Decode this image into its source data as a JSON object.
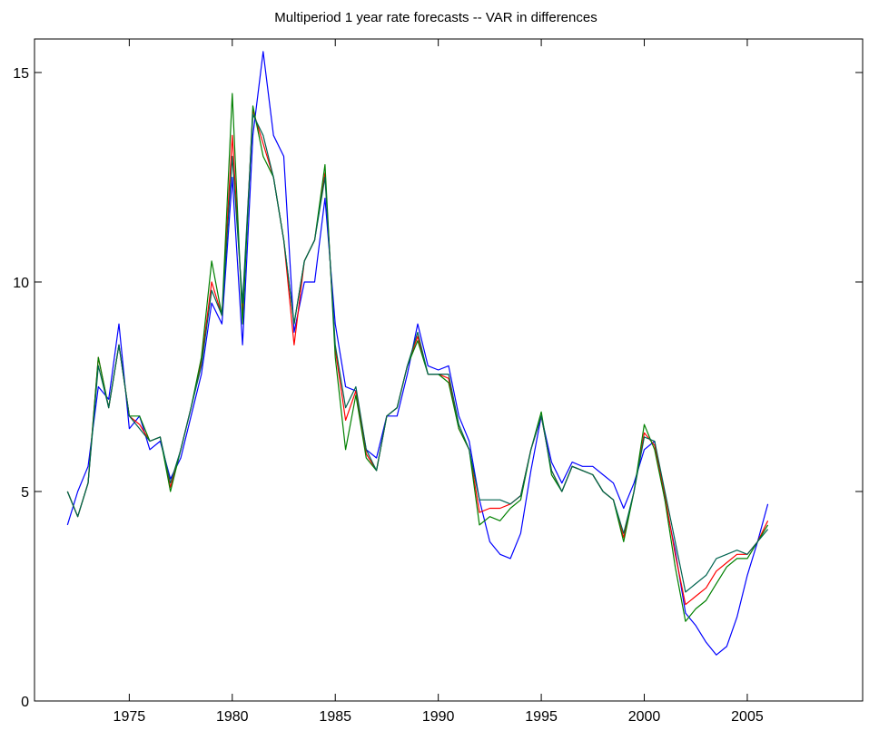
{
  "chart_data": {
    "type": "line",
    "title": "Multiperiod 1 year rate forecasts -- VAR in differences",
    "x": [
      1972.0,
      1972.5,
      1973.0,
      1973.5,
      1974.0,
      1974.5,
      1975.0,
      1975.5,
      1976.0,
      1976.5,
      1977.0,
      1977.5,
      1978.0,
      1978.5,
      1979.0,
      1979.5,
      1980.0,
      1980.5,
      1981.0,
      1981.5,
      1982.0,
      1982.5,
      1983.0,
      1983.5,
      1984.0,
      1984.5,
      1985.0,
      1985.5,
      1986.0,
      1986.5,
      1987.0,
      1987.5,
      1988.0,
      1988.5,
      1989.0,
      1989.5,
      1990.0,
      1990.5,
      1991.0,
      1991.5,
      1992.0,
      1992.5,
      1993.0,
      1993.5,
      1994.0,
      1994.5,
      1995.0,
      1995.5,
      1996.0,
      1996.5,
      1997.0,
      1997.5,
      1998.0,
      1998.5,
      1999.0,
      1999.5,
      2000.0,
      2000.5,
      2001.0,
      2001.5,
      2002.0,
      2002.5,
      2003.0,
      2003.5,
      2004.0,
      2004.5,
      2005.0,
      2005.5,
      2006.0
    ],
    "series": [
      {
        "color": "#0000ff",
        "values": [
          4.2,
          5.0,
          5.6,
          7.5,
          7.2,
          9.0,
          6.5,
          6.8,
          6.0,
          6.2,
          5.3,
          5.8,
          6.8,
          7.8,
          9.5,
          9.0,
          12.5,
          8.5,
          13.5,
          15.5,
          13.5,
          13.0,
          8.8,
          10.0,
          10.0,
          12.0,
          9.0,
          7.5,
          7.4,
          6.0,
          5.8,
          6.8,
          6.8,
          7.8,
          9.0,
          8.0,
          7.9,
          8.0,
          6.8,
          6.2,
          4.8,
          3.8,
          3.5,
          3.4,
          4.0,
          5.5,
          6.8,
          5.7,
          5.2,
          5.7,
          5.6,
          5.6,
          5.4,
          5.2,
          4.6,
          5.2,
          6.0,
          6.2,
          4.8,
          3.6,
          2.1,
          1.8,
          1.4,
          1.1,
          1.3,
          2.0,
          3.0,
          3.8,
          4.7
        ]
      },
      {
        "color": "#ff0000",
        "values": [
          5.0,
          4.4,
          5.2,
          8.2,
          7.0,
          8.5,
          6.8,
          6.6,
          6.2,
          6.3,
          5.1,
          6.0,
          7.0,
          8.1,
          10.0,
          9.2,
          13.5,
          9.3,
          14.1,
          13.3,
          12.5,
          11.0,
          8.5,
          10.5,
          11.0,
          12.6,
          8.4,
          6.7,
          7.4,
          5.9,
          5.5,
          6.8,
          7.0,
          8.0,
          8.7,
          7.8,
          7.8,
          7.7,
          6.5,
          6.0,
          4.5,
          4.6,
          4.6,
          4.7,
          4.9,
          6.0,
          6.8,
          5.5,
          5.0,
          5.6,
          5.5,
          5.4,
          5.0,
          4.8,
          3.9,
          5.0,
          6.4,
          6.1,
          4.9,
          3.5,
          2.3,
          2.5,
          2.7,
          3.1,
          3.3,
          3.5,
          3.5,
          3.8,
          4.3
        ]
      },
      {
        "color": "#008000",
        "values": [
          5.0,
          4.4,
          5.2,
          8.2,
          7.0,
          8.5,
          6.8,
          6.8,
          6.2,
          6.3,
          5.0,
          6.0,
          7.0,
          8.2,
          10.5,
          9.2,
          14.5,
          9.0,
          14.2,
          13.0,
          12.5,
          11.0,
          9.0,
          10.5,
          11.0,
          12.8,
          8.2,
          6.0,
          7.3,
          5.8,
          5.5,
          6.8,
          7.0,
          8.0,
          8.6,
          7.8,
          7.8,
          7.6,
          6.5,
          6.0,
          4.2,
          4.4,
          4.3,
          4.6,
          4.8,
          6.0,
          6.9,
          5.4,
          5.0,
          5.6,
          5.5,
          5.4,
          5.0,
          4.8,
          3.8,
          5.0,
          6.6,
          6.0,
          4.8,
          3.2,
          1.9,
          2.2,
          2.4,
          2.8,
          3.2,
          3.4,
          3.4,
          3.8,
          4.2
        ]
      },
      {
        "color": "#006450",
        "values": [
          5.0,
          4.4,
          5.2,
          8.0,
          7.0,
          8.5,
          6.8,
          6.5,
          6.2,
          6.3,
          5.2,
          6.0,
          7.0,
          8.0,
          9.8,
          9.2,
          13.0,
          9.5,
          14.0,
          13.5,
          12.5,
          11.0,
          9.0,
          10.5,
          11.0,
          12.5,
          8.5,
          7.0,
          7.5,
          6.0,
          5.5,
          6.8,
          7.0,
          8.0,
          8.8,
          7.8,
          7.8,
          7.8,
          6.6,
          6.0,
          4.8,
          4.8,
          4.8,
          4.7,
          4.9,
          6.0,
          6.8,
          5.5,
          5.0,
          5.6,
          5.5,
          5.4,
          5.0,
          4.8,
          4.0,
          5.0,
          6.3,
          6.2,
          5.0,
          3.8,
          2.6,
          2.8,
          3.0,
          3.4,
          3.5,
          3.6,
          3.5,
          3.8,
          4.1
        ]
      }
    ],
    "xlim": [
      1970.4,
      2010.6
    ],
    "xticks": [
      1975,
      1980,
      1985,
      1990,
      1995,
      2000,
      2005
    ],
    "ylim": [
      0,
      15.8
    ],
    "yticks": [
      0,
      5,
      10,
      15
    ]
  }
}
